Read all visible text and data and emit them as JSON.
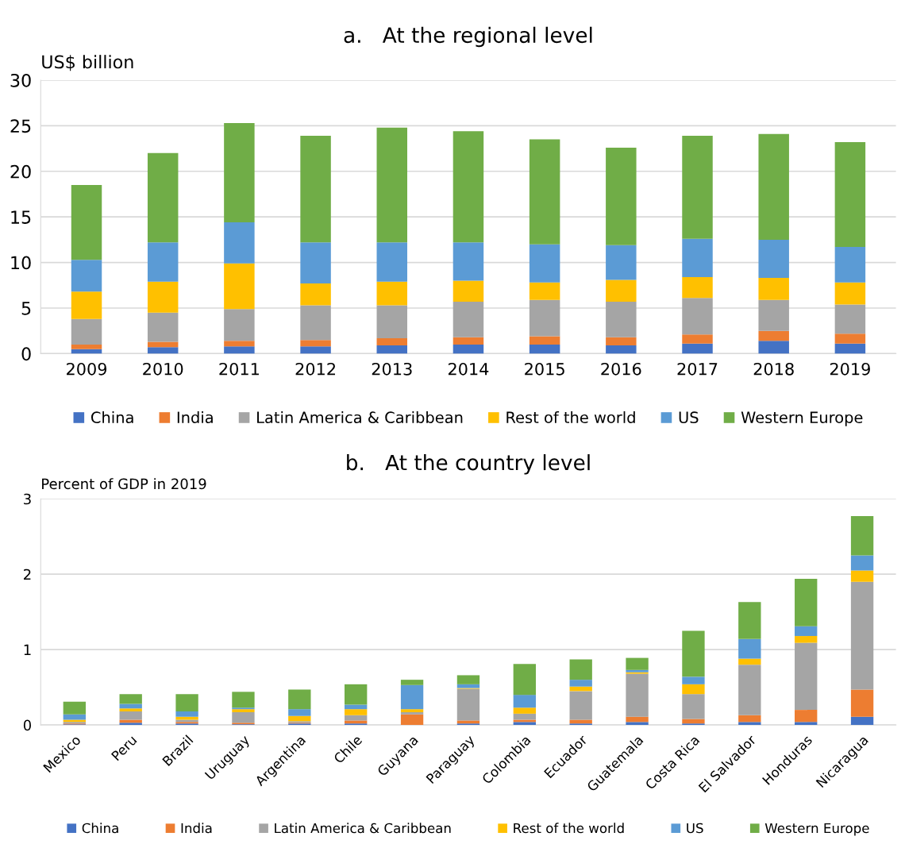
{
  "chart_data": [
    {
      "type": "bar",
      "stacked": true,
      "title": "a.   At the regional level",
      "ylabel": "US$ billion",
      "categories": [
        "2009",
        "2010",
        "2011",
        "2012",
        "2013",
        "2014",
        "2015",
        "2016",
        "2017",
        "2018",
        "2019"
      ],
      "ylim": [
        0,
        30
      ],
      "yticks": [
        0,
        5,
        10,
        15,
        20,
        25,
        30
      ],
      "grid": "y",
      "legend": "bottom",
      "series": [
        {
          "name": "China",
          "color": "#4472c4",
          "values": [
            0.5,
            0.7,
            0.8,
            0.8,
            0.9,
            1.0,
            1.0,
            0.9,
            1.1,
            1.4,
            1.1
          ]
        },
        {
          "name": "India",
          "color": "#ed7d31",
          "values": [
            0.5,
            0.6,
            0.6,
            0.7,
            0.8,
            0.8,
            0.9,
            0.9,
            1.0,
            1.1,
            1.1
          ]
        },
        {
          "name": "Latin America & Caribbean",
          "color": "#a5a5a5",
          "values": [
            2.8,
            3.2,
            3.5,
            3.8,
            3.6,
            3.9,
            4.0,
            3.9,
            4.0,
            3.4,
            3.2
          ]
        },
        {
          "name": "Rest of the world",
          "color": "#ffc000",
          "values": [
            3.0,
            3.4,
            5.0,
            2.4,
            2.6,
            2.3,
            1.9,
            2.4,
            2.3,
            2.4,
            2.4
          ]
        },
        {
          "name": "US",
          "color": "#5b9bd5",
          "values": [
            3.5,
            4.3,
            4.5,
            4.5,
            4.3,
            4.2,
            4.2,
            3.8,
            4.2,
            4.2,
            3.9
          ]
        },
        {
          "name": "Western Europe",
          "color": "#70ad47",
          "values": [
            8.2,
            9.8,
            10.9,
            11.7,
            12.6,
            12.2,
            11.5,
            10.7,
            11.3,
            11.6,
            11.5
          ]
        }
      ]
    },
    {
      "type": "bar",
      "stacked": true,
      "title": "b.   At the country level",
      "ylabel": "Percent of GDP in 2019",
      "categories": [
        "Mexico",
        "Peru",
        "Brazil",
        "Uruguay",
        "Argentina",
        "Chile",
        "Guyana",
        "Paraguay",
        "Colombia",
        "Ecuador",
        "Guatemala",
        "Costa Rica",
        "El Salvador",
        "Honduras",
        "Nicaragua"
      ],
      "ylim": [
        0,
        3
      ],
      "yticks": [
        0,
        1,
        2,
        3
      ],
      "grid": "y",
      "legend": "bottom",
      "series": [
        {
          "name": "China",
          "color": "#4472c4",
          "values": [
            0.01,
            0.03,
            0.02,
            0.01,
            0.02,
            0.02,
            0.0,
            0.02,
            0.04,
            0.02,
            0.04,
            0.02,
            0.04,
            0.04,
            0.11
          ]
        },
        {
          "name": "India",
          "color": "#ed7d31",
          "values": [
            0.01,
            0.04,
            0.02,
            0.02,
            0.01,
            0.04,
            0.14,
            0.04,
            0.03,
            0.05,
            0.07,
            0.06,
            0.09,
            0.16,
            0.36
          ]
        },
        {
          "name": "Latin America & Caribbean",
          "color": "#a5a5a5",
          "values": [
            0.02,
            0.11,
            0.03,
            0.14,
            0.02,
            0.07,
            0.03,
            0.42,
            0.08,
            0.38,
            0.57,
            0.33,
            0.67,
            0.89,
            1.43
          ]
        },
        {
          "name": "Rest of the world",
          "color": "#ffc000",
          "values": [
            0.03,
            0.04,
            0.04,
            0.04,
            0.07,
            0.08,
            0.04,
            0.01,
            0.08,
            0.06,
            0.02,
            0.13,
            0.08,
            0.09,
            0.15
          ]
        },
        {
          "name": "US",
          "color": "#5b9bd5",
          "values": [
            0.07,
            0.06,
            0.07,
            0.02,
            0.09,
            0.06,
            0.32,
            0.05,
            0.17,
            0.09,
            0.03,
            0.1,
            0.26,
            0.13,
            0.2
          ]
        },
        {
          "name": "Western Europe",
          "color": "#70ad47",
          "values": [
            0.17,
            0.13,
            0.23,
            0.21,
            0.26,
            0.27,
            0.07,
            0.12,
            0.41,
            0.27,
            0.16,
            0.61,
            0.49,
            0.63,
            0.52
          ]
        }
      ]
    }
  ]
}
